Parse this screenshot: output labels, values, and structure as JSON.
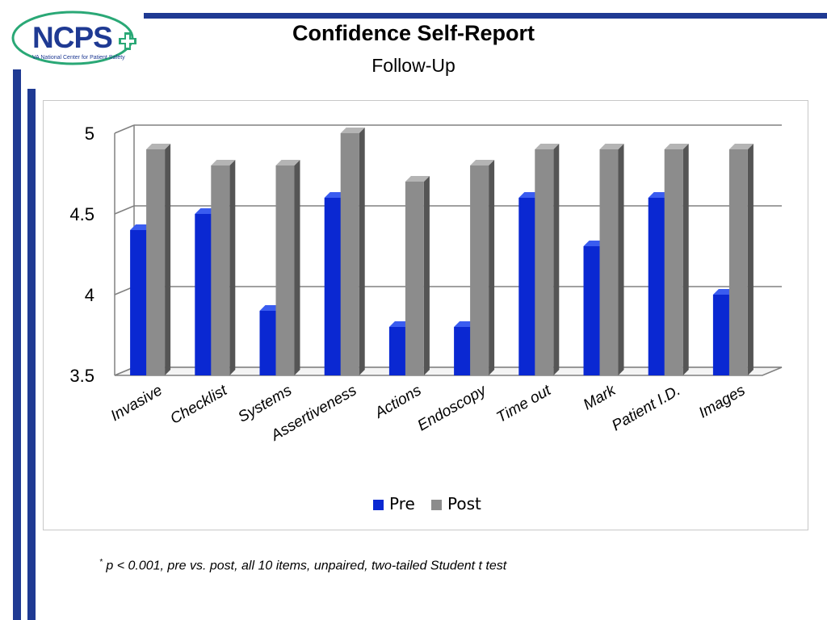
{
  "logo": {
    "text": "NCPS",
    "subtitle": "VA National Center for Patient Safety"
  },
  "header": {
    "title": "Confidence Self-Report",
    "subtitle": "Follow-Up"
  },
  "footnote": {
    "marker": "*",
    "text": " p < 0.001, pre vs. post, all 10 items, unpaired, two-tailed Student t test"
  },
  "colors": {
    "pre": "#0a28d2",
    "post": "#8c8c8c",
    "accent": "#1f3a93"
  },
  "chart_data": {
    "type": "bar",
    "title": "",
    "xlabel": "",
    "ylabel": "",
    "ylim": [
      3.5,
      5
    ],
    "yticks": [
      "3.5",
      "4",
      "4.5",
      "5"
    ],
    "grid": true,
    "legend": "bottom",
    "categories": [
      "Invasive",
      "Checklist",
      "Systems",
      "Assertiveness",
      "Actions",
      "Endoscopy",
      "Time out",
      "Mark",
      "Patient I.D.",
      "Images"
    ],
    "series": [
      {
        "name": "Pre",
        "values": [
          4.4,
          4.5,
          3.9,
          4.6,
          3.8,
          3.8,
          4.6,
          4.3,
          4.6,
          4.0
        ]
      },
      {
        "name": "Post",
        "values": [
          4.9,
          4.8,
          4.8,
          5.0,
          4.7,
          4.8,
          4.9,
          4.9,
          4.9,
          4.9
        ]
      }
    ]
  }
}
